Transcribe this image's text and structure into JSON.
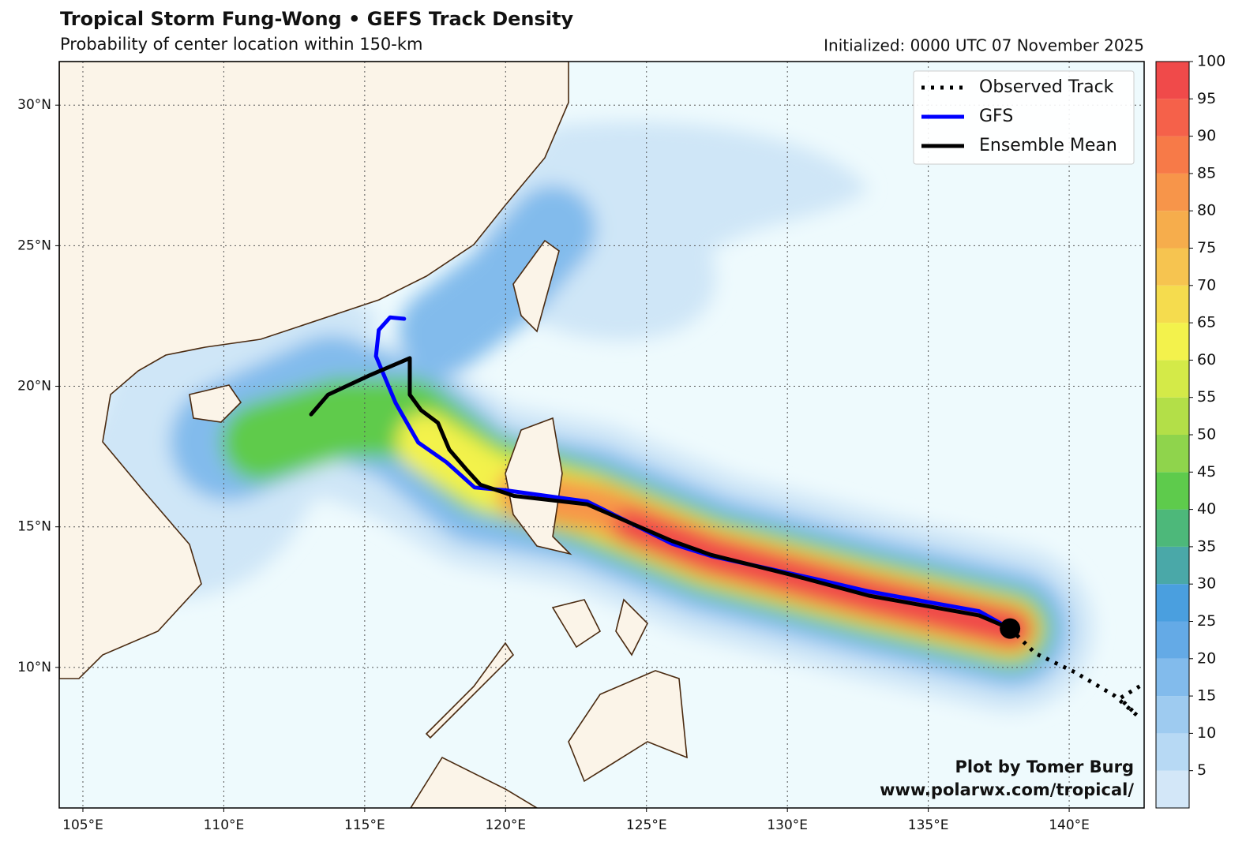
{
  "chart_data": {
    "type": "track-map",
    "title": "Tropical Storm Fung-Wong • GEFS Track Density",
    "subtitle": "Probability of center location within 150-km",
    "init_label": "Initialized: 0000 UTC 07 November 2025",
    "credit": [
      "Plot by Tomer Burg",
      "www.polarwx.com/tropical/"
    ],
    "xlim": [
      104.16,
      142.66
    ],
    "ylim": [
      5.0,
      31.55
    ],
    "xticks": [
      {
        "value": 105,
        "label": "105°E"
      },
      {
        "value": 110,
        "label": "110°E"
      },
      {
        "value": 115,
        "label": "115°E"
      },
      {
        "value": 120,
        "label": "120°E"
      },
      {
        "value": 125,
        "label": "125°E"
      },
      {
        "value": 130,
        "label": "130°E"
      },
      {
        "value": 135,
        "label": "135°E"
      },
      {
        "value": 140,
        "label": "140°E"
      }
    ],
    "yticks": [
      {
        "value": 10,
        "label": "10°N"
      },
      {
        "value": 15,
        "label": "15°N"
      },
      {
        "value": 20,
        "label": "20°N"
      },
      {
        "value": 25,
        "label": "25°N"
      },
      {
        "value": 30,
        "label": "30°N"
      }
    ],
    "grid": true,
    "legend": "upper right",
    "series": [
      {
        "name": "Observed Track",
        "color": "#000000",
        "style": "dotted",
        "x": [
          137.9,
          138.8,
          140.2,
          141.6,
          142.4,
          141.8,
          142.5
        ],
        "values": [
          11.38,
          10.5,
          9.83,
          9.0,
          8.3,
          8.9,
          9.33
        ]
      },
      {
        "name": "GFS",
        "color": "#0000ff",
        "style": "solid",
        "x": [
          137.9,
          136.8,
          132.9,
          131.2,
          127.3,
          125.9,
          122.9,
          120.0,
          118.9,
          117.9,
          116.9,
          116.1,
          115.4,
          115.5,
          115.9,
          116.4
        ],
        "values": [
          11.38,
          12.0,
          12.7,
          13.1,
          13.96,
          14.4,
          15.9,
          16.3,
          16.4,
          17.3,
          18.0,
          19.4,
          21.07,
          22.0,
          22.45,
          22.4
        ]
      },
      {
        "name": "Ensemble Mean",
        "color": "#000000",
        "style": "solid",
        "x": [
          137.9,
          136.8,
          132.9,
          130.1,
          127.3,
          125.9,
          122.9,
          120.3,
          119.1,
          118.6,
          118.0,
          117.6,
          117.0,
          116.6,
          116.6,
          116.6,
          115.2,
          113.7,
          113.1
        ],
        "values": [
          11.38,
          11.85,
          12.55,
          13.3,
          14.0,
          14.5,
          15.8,
          16.1,
          16.5,
          17.05,
          17.75,
          18.7,
          19.15,
          19.7,
          20.85,
          21.0,
          20.4,
          19.7,
          19.0
        ]
      }
    ],
    "colorbar": {
      "lim": [
        0,
        100
      ],
      "ticks": [
        5,
        10,
        15,
        20,
        25,
        30,
        35,
        40,
        45,
        50,
        55,
        60,
        65,
        70,
        75,
        80,
        85,
        90,
        95,
        100
      ],
      "colors": [
        "#d3e7f8",
        "#b7d9f4",
        "#9ecbf0",
        "#82bbec",
        "#64aae6",
        "#4a9fdf",
        "#4aa8a8",
        "#4db87a",
        "#5ecb4c",
        "#8fd44c",
        "#b3df48",
        "#d4ea48",
        "#f3f24c",
        "#f5dc4e",
        "#f6c450",
        "#f6ad4c",
        "#f7954a",
        "#f77a48",
        "#f5614a",
        "#f04a4a"
      ]
    }
  }
}
